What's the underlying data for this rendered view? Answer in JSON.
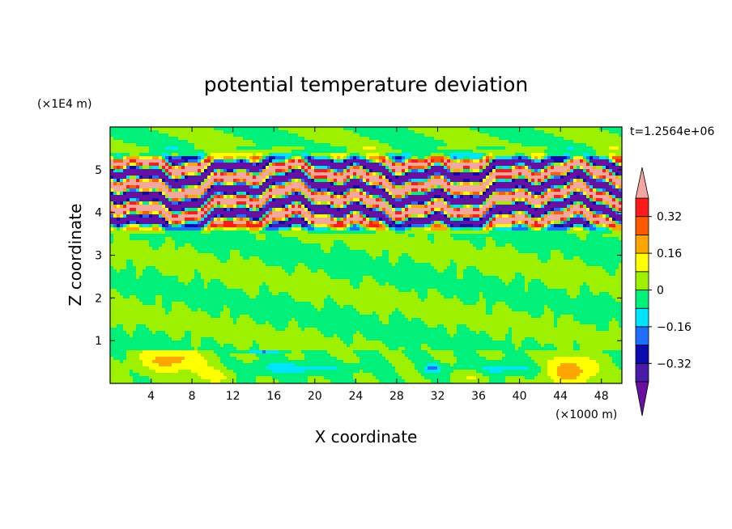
{
  "chart_data": {
    "type": "heatmap",
    "title": "potential temperature deviation",
    "xlabel": "X coordinate",
    "ylabel": "Z coordinate",
    "x_unit": "(×1000 m)",
    "y_unit": "(×1E4 m)",
    "time_label": "t=1.2564e+06",
    "xlim": [
      0,
      50
    ],
    "ylim": [
      0,
      6
    ],
    "x_ticks": [
      4,
      8,
      12,
      16,
      20,
      24,
      28,
      32,
      36,
      40,
      44,
      48
    ],
    "y_ticks": [
      1,
      2,
      3,
      4,
      5
    ],
    "colorbar": {
      "levels": [
        -0.4,
        -0.32,
        -0.24,
        -0.16,
        -0.08,
        0,
        0.08,
        0.16,
        0.24,
        0.32,
        0.4
      ],
      "tick_labels": [
        "0.32",
        "0.16",
        "0",
        "−0.16",
        "−0.32"
      ],
      "tick_values": [
        0.32,
        0.16,
        0,
        -0.16,
        -0.32
      ],
      "colors": [
        "#6a0fa0",
        "#4a1aa8",
        "#0b0bb0",
        "#1f6fff",
        "#00e5ff",
        "#00f07a",
        "#9cf000",
        "#ffff00",
        "#ffa500",
        "#ff5a00",
        "#ff1a1a",
        "#f4a6a0"
      ],
      "extend": "both"
    },
    "bands": [
      {
        "z": [
          0.0,
          0.8
        ],
        "description_level": "near-surface mixed"
      },
      {
        "z": [
          0.8,
          3.5
        ],
        "description_level": "near-zero"
      },
      {
        "z": [
          3.5,
          5.4
        ],
        "description_level": "strong alternating layers"
      },
      {
        "z": [
          5.4,
          6.0
        ],
        "description_level": "near-zero"
      }
    ]
  }
}
